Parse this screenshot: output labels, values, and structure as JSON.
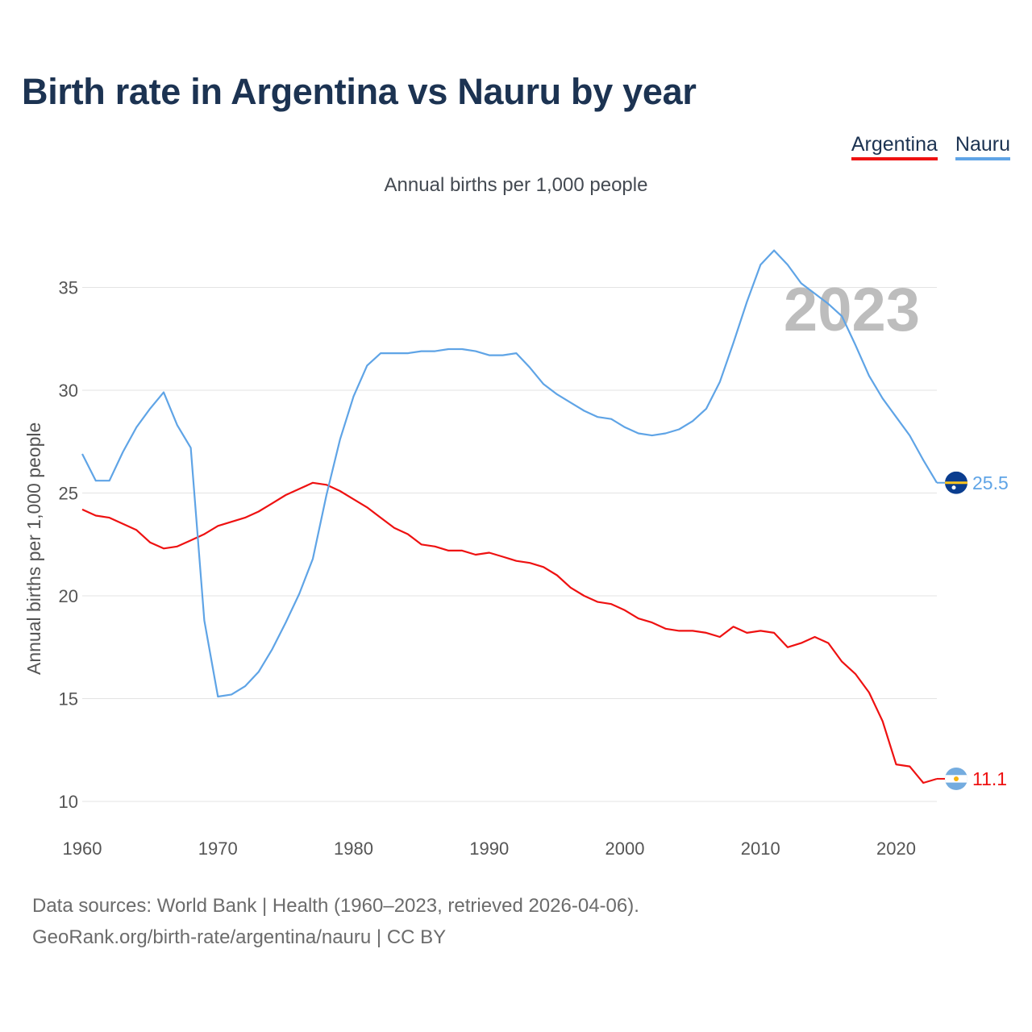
{
  "title": "Birth rate in Argentina vs Nauru by year",
  "subtitle": "Annual births per 1,000 people",
  "footer": {
    "sources": "Data sources: World Bank | Health (1960–2023, retrieved 2026-04-06).",
    "url": "GeoRank.org/birth-rate/argentina/nauru | CC BY"
  },
  "legend": [
    {
      "label": "Argentina",
      "color": "#ee1111"
    },
    {
      "label": "Nauru",
      "color": "#5fa4e6"
    }
  ],
  "chart_data": {
    "type": "line",
    "title": "Birth rate in Argentina vs Nauru by year",
    "ylabel": "Annual births per 1,000 people",
    "xlabel": "",
    "year_watermark": "2023",
    "xlim": [
      1960,
      2023
    ],
    "ylim": [
      9,
      37
    ],
    "grid": true,
    "x_ticks": [
      1960,
      1970,
      1980,
      1990,
      2000,
      2010,
      2020
    ],
    "y_ticks": [
      10,
      15,
      20,
      25,
      30,
      35
    ],
    "x": [
      1960,
      1961,
      1962,
      1963,
      1964,
      1965,
      1966,
      1967,
      1968,
      1969,
      1970,
      1971,
      1972,
      1973,
      1974,
      1975,
      1976,
      1977,
      1978,
      1979,
      1980,
      1981,
      1982,
      1983,
      1984,
      1985,
      1986,
      1987,
      1988,
      1989,
      1990,
      1991,
      1992,
      1993,
      1994,
      1995,
      1996,
      1997,
      1998,
      1999,
      2000,
      2001,
      2002,
      2003,
      2004,
      2005,
      2006,
      2007,
      2008,
      2009,
      2010,
      2011,
      2012,
      2013,
      2014,
      2015,
      2016,
      2017,
      2018,
      2019,
      2020,
      2021,
      2022,
      2023
    ],
    "series": [
      {
        "name": "Argentina",
        "color": "#ee1111",
        "end_label": "11.1",
        "values": [
          24.2,
          23.9,
          23.8,
          23.5,
          23.2,
          22.6,
          22.3,
          22.4,
          22.7,
          23.0,
          23.4,
          23.6,
          23.8,
          24.1,
          24.5,
          24.9,
          25.2,
          25.5,
          25.4,
          25.1,
          24.7,
          24.3,
          23.8,
          23.3,
          23.0,
          22.5,
          22.4,
          22.2,
          22.2,
          22.0,
          22.1,
          21.9,
          21.7,
          21.6,
          21.4,
          21.0,
          20.4,
          20.0,
          19.7,
          19.6,
          19.3,
          18.9,
          18.7,
          18.4,
          18.3,
          18.3,
          18.2,
          18.0,
          18.5,
          18.2,
          18.3,
          18.2,
          17.5,
          17.7,
          18.0,
          17.7,
          16.8,
          16.2,
          15.3,
          13.9,
          11.8,
          11.7,
          10.9,
          11.1
        ]
      },
      {
        "name": "Nauru",
        "color": "#5fa4e6",
        "end_label": "25.5",
        "values": [
          26.9,
          25.6,
          25.6,
          27.0,
          28.2,
          29.1,
          29.9,
          28.3,
          27.2,
          18.8,
          15.1,
          15.2,
          15.6,
          16.3,
          17.4,
          18.7,
          20.1,
          21.8,
          24.9,
          27.6,
          29.7,
          31.2,
          31.8,
          31.8,
          31.8,
          31.9,
          31.9,
          32.0,
          32.0,
          31.9,
          31.7,
          31.7,
          31.8,
          31.1,
          30.3,
          29.8,
          29.4,
          29.0,
          28.7,
          28.6,
          28.2,
          27.9,
          27.8,
          27.9,
          28.1,
          28.5,
          29.1,
          30.4,
          32.3,
          34.3,
          36.1,
          36.8,
          36.1,
          35.2,
          34.7,
          34.2,
          33.6,
          32.2,
          30.7,
          29.6,
          28.7,
          27.8,
          26.6,
          25.5
        ]
      }
    ]
  }
}
